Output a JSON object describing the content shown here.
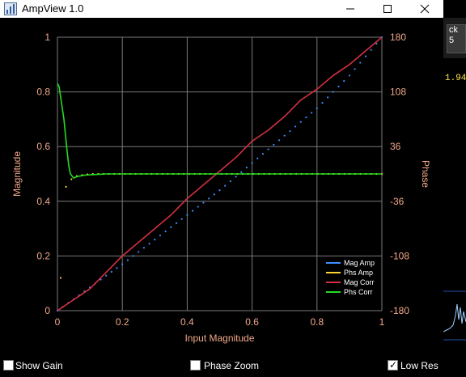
{
  "window": {
    "title": "AmpView 1.0"
  },
  "background_app": {
    "button_text": "ck",
    "button_sub": "5",
    "readout": "1.94"
  },
  "chart_data": {
    "type": "line",
    "title": "",
    "xlabel": "Input Magnitude",
    "ylabel": "Magnitude",
    "y2label": "Phase",
    "xlim": [
      0,
      1
    ],
    "ylim": [
      0,
      1
    ],
    "y2lim": [
      -180,
      180
    ],
    "x_ticks": [
      "0",
      "0.2",
      "0.4",
      "0.6",
      "0.8",
      "1"
    ],
    "y_ticks": [
      "0",
      "0.2",
      "0.4",
      "0.6",
      "0.8",
      "1"
    ],
    "y2_ticks": [
      "-180",
      "-108",
      "-36",
      "36",
      "108",
      "180"
    ],
    "grid": true,
    "legend_position": "bottom-right",
    "series": [
      {
        "name": "Mag Amp",
        "color": "#3d8cff",
        "style": "dotted",
        "x": [
          0,
          0.05,
          0.1,
          0.15,
          0.2,
          0.25,
          0.3,
          0.35,
          0.4,
          0.45,
          0.5,
          0.55,
          0.6,
          0.65,
          0.7,
          0.75,
          0.8,
          0.85,
          0.9,
          0.95,
          1
        ],
        "y": [
          0,
          0.042,
          0.085,
          0.128,
          0.17,
          0.215,
          0.26,
          0.305,
          0.35,
          0.395,
          0.44,
          0.49,
          0.54,
          0.59,
          0.64,
          0.69,
          0.74,
          0.8,
          0.86,
          0.93,
          1
        ]
      },
      {
        "name": "Phs Amp",
        "color": "#ffd233",
        "style": "dotted",
        "x": [
          0.01,
          0.015,
          0.025,
          0.035,
          0.05,
          0.07,
          0.1,
          0.15,
          0.2,
          0.3,
          0.4,
          0.5,
          0.6,
          0.7,
          0.8,
          0.9,
          1
        ],
        "y": [
          0.12,
          0.37,
          0.45,
          0.47,
          0.49,
          0.495,
          0.5,
          0.5,
          0.5,
          0.5,
          0.5,
          0.5,
          0.5,
          0.5,
          0.5,
          0.5,
          0.5
        ]
      },
      {
        "name": "Mag Corr",
        "color": "#d43040",
        "style": "solid",
        "x": [
          0,
          0.05,
          0.1,
          0.15,
          0.2,
          0.25,
          0.3,
          0.35,
          0.4,
          0.45,
          0.5,
          0.55,
          0.6,
          0.65,
          0.7,
          0.75,
          0.8,
          0.85,
          0.9,
          0.95,
          1
        ],
        "y": [
          0,
          0.04,
          0.08,
          0.14,
          0.2,
          0.25,
          0.3,
          0.35,
          0.41,
          0.46,
          0.51,
          0.56,
          0.62,
          0.66,
          0.71,
          0.77,
          0.81,
          0.86,
          0.9,
          0.95,
          1
        ]
      },
      {
        "name": "Phs Corr",
        "color": "#22dd22",
        "style": "solid",
        "x": [
          0,
          0.005,
          0.01,
          0.02,
          0.03,
          0.035,
          0.04,
          0.05,
          0.06,
          0.08,
          0.1,
          0.15,
          0.2,
          0.3,
          0.4,
          0.5,
          0.6,
          0.7,
          0.8,
          0.9,
          1
        ],
        "y": [
          0.83,
          0.82,
          0.78,
          0.7,
          0.58,
          0.53,
          0.5,
          0.485,
          0.49,
          0.495,
          0.497,
          0.5,
          0.5,
          0.5,
          0.5,
          0.5,
          0.5,
          0.5,
          0.5,
          0.5,
          0.5
        ]
      }
    ]
  },
  "controls": {
    "show_gain": {
      "label": "Show Gain",
      "checked": false
    },
    "phase_zoom": {
      "label": "Phase Zoom",
      "checked": false
    },
    "low_res": {
      "label": "Low Res",
      "checked": true
    }
  },
  "colors": {
    "axis_text": "#f2a98a",
    "grid": "#7a7a7a",
    "plot_bg": "#000000"
  }
}
